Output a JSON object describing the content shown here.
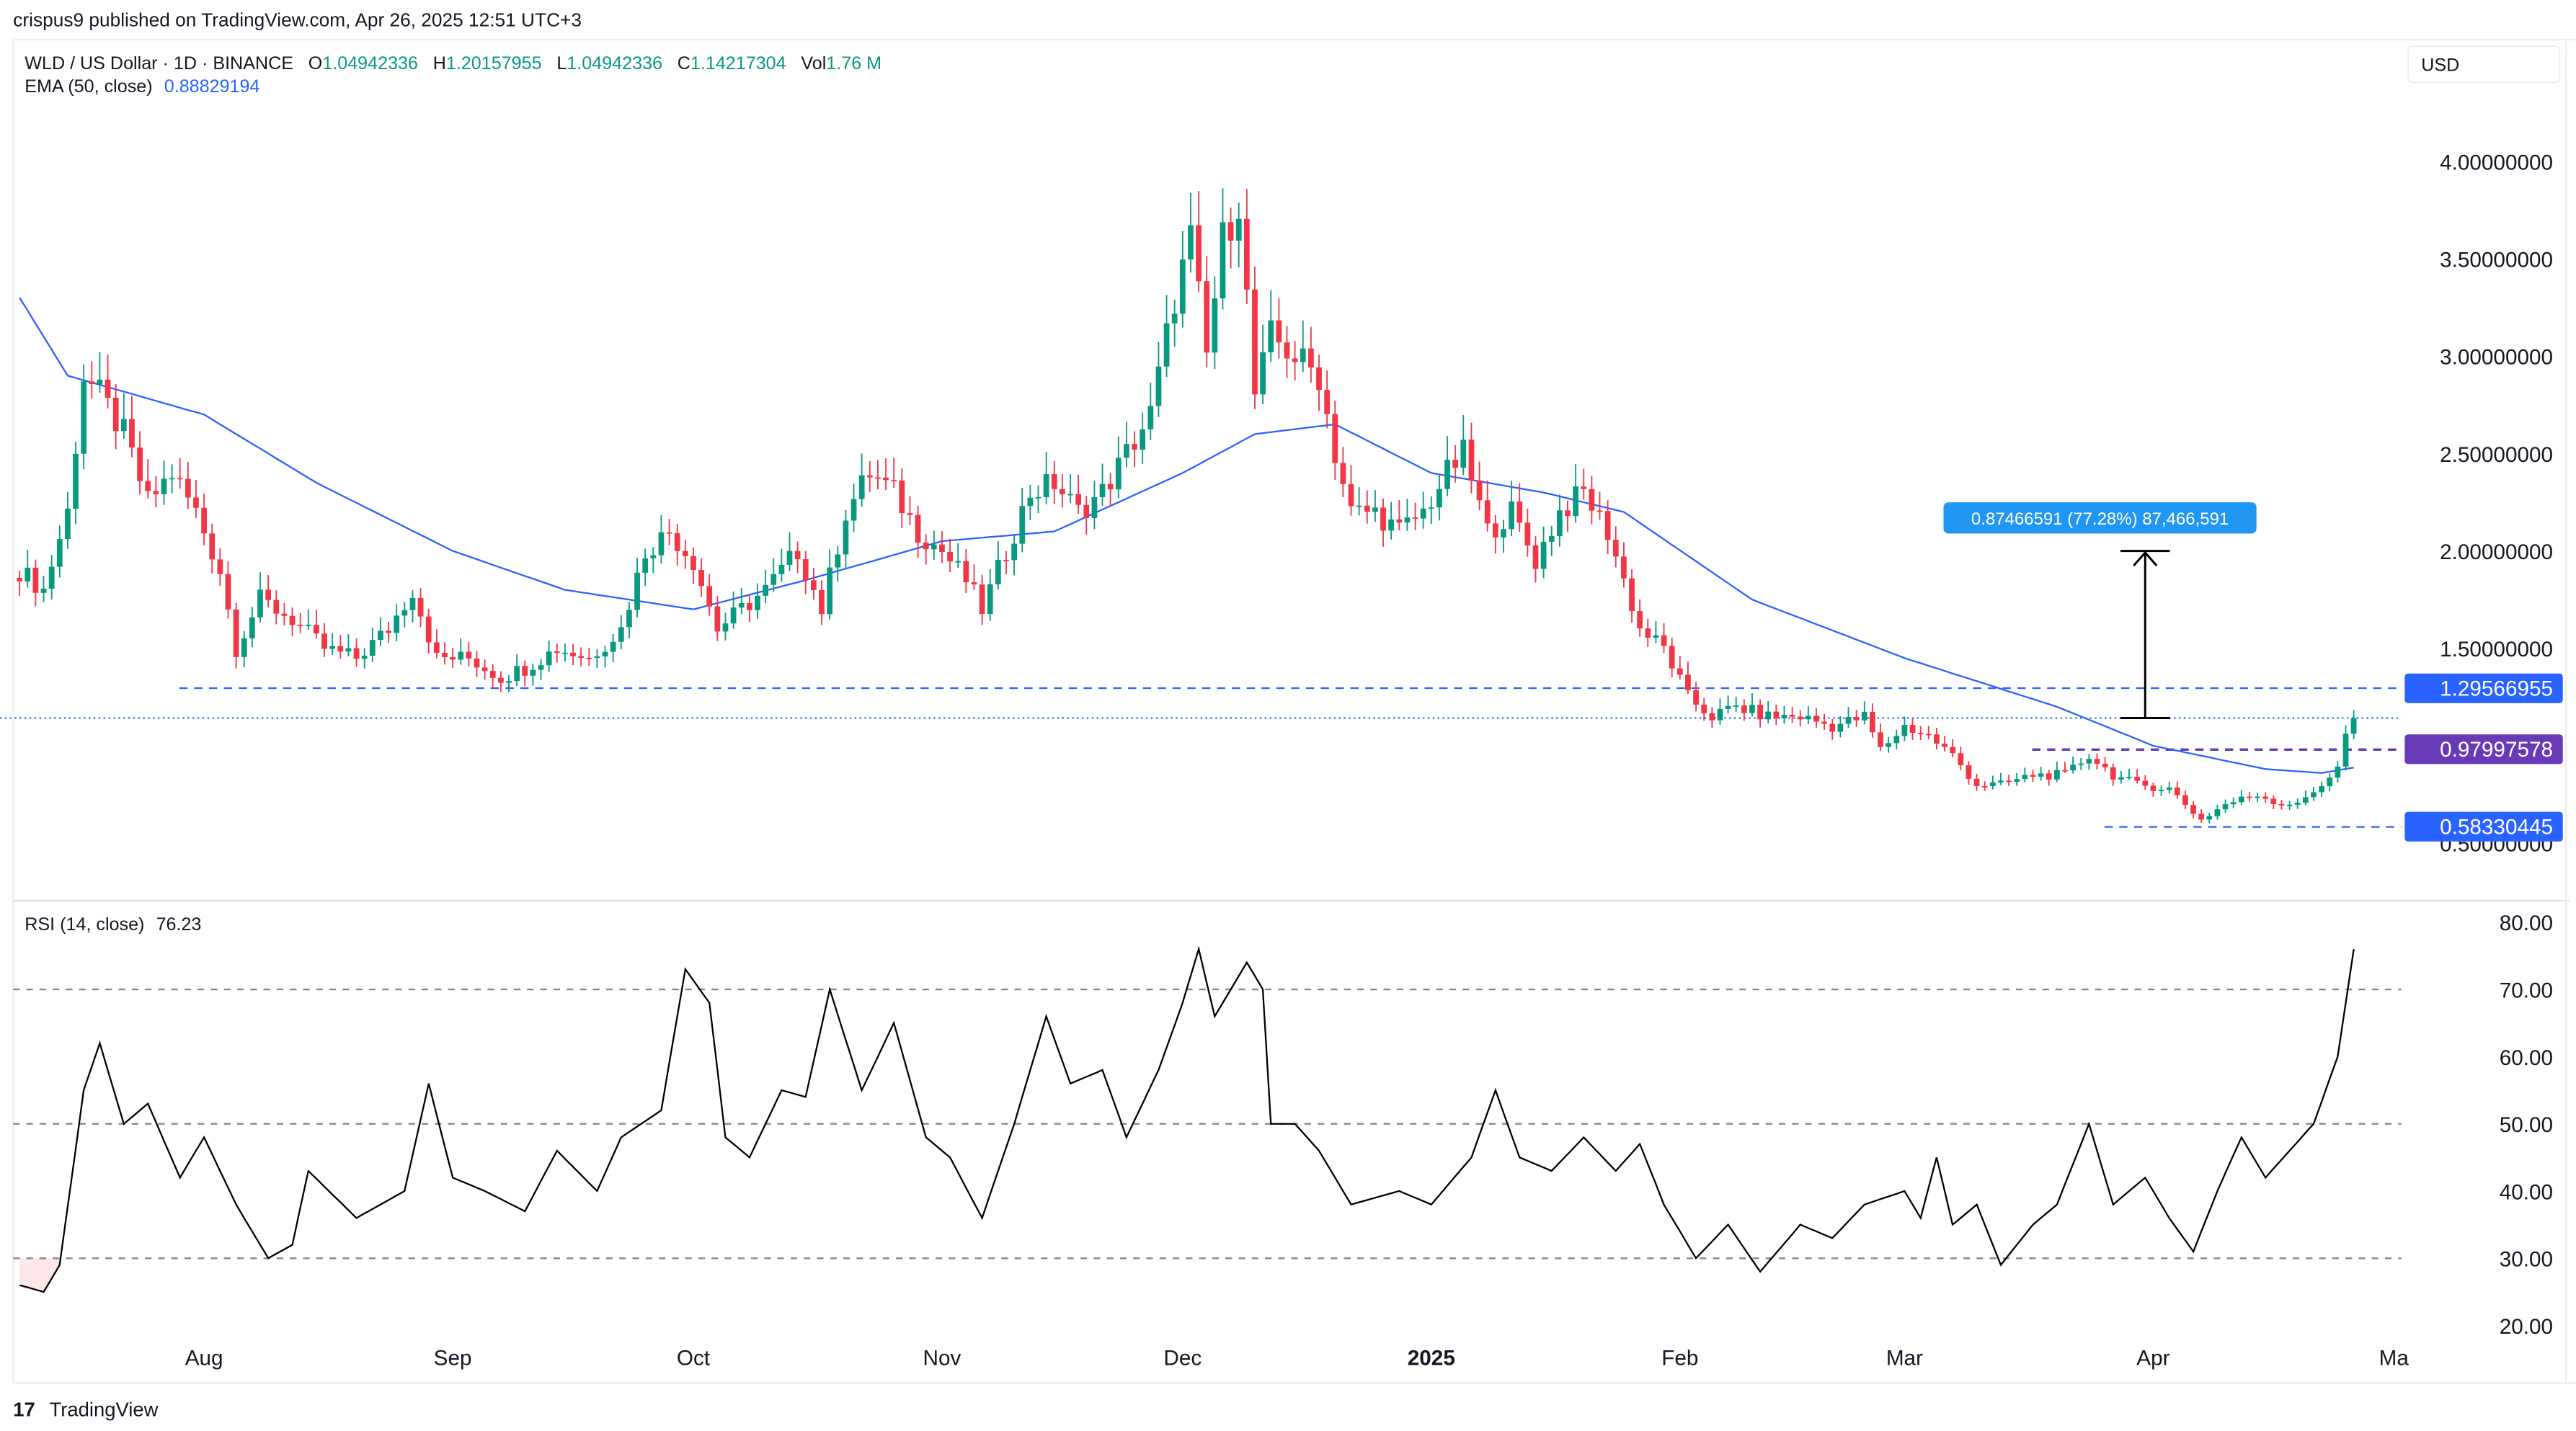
{
  "publisher_line": "crispus9 published on TradingView.com, Apr 26, 2025 12:51 UTC+3",
  "legend": {
    "symbol": "WLD / US Dollar · 1D · BINANCE",
    "o_label": "O",
    "o": "1.04942336",
    "h_label": "H",
    "h": "1.20157955",
    "l_label": "L",
    "l": "1.04942336",
    "c_label": "C",
    "c": "1.14217304",
    "vol_label": "Vol",
    "vol": "1.76 M",
    "ema_label": "EMA (50, close)",
    "ema": "0.88829194"
  },
  "currency_button": "USD",
  "price_labels": {
    "resistance": "1.29566955",
    "pivot": "0.97997578",
    "support": "0.58330445"
  },
  "measure_label": "0.87466591 (77.28%) 87,466,591",
  "rsi_label": "RSI (14, close)",
  "rsi_value": "76.23",
  "footer_logo": "TradingView",
  "colors": {
    "up": "#089981",
    "down": "#f23645",
    "ema": "#2962ff",
    "line_blue": "#2962ff",
    "purple": "#673ab7",
    "rsi": "#000000",
    "measure": "#2196f3"
  },
  "chart_data": [
    {
      "type": "candlestick",
      "title": "WLD / US Dollar · 1D · BINANCE",
      "y_ticks": [
        "4.00000000",
        "3.50000000",
        "3.00000000",
        "2.50000000",
        "2.00000000",
        "1.50000000",
        "0.50000000"
      ],
      "y_tick_values": [
        4.0,
        3.5,
        3.0,
        2.5,
        2.0,
        1.5,
        0.5
      ],
      "ylim": [
        0.45,
        4.3
      ],
      "x_ticks": [
        {
          "label": "Aug",
          "date": "2024-08-01"
        },
        {
          "label": "Sep",
          "date": "2024-09-01"
        },
        {
          "label": "Oct",
          "date": "2024-10-01"
        },
        {
          "label": "Nov",
          "date": "2024-11-01"
        },
        {
          "label": "Dec",
          "date": "2024-12-01"
        },
        {
          "label": "2025",
          "date": "2025-01-01"
        },
        {
          "label": "Feb",
          "date": "2025-02-01"
        },
        {
          "label": "Mar",
          "date": "2025-03-01"
        },
        {
          "label": "Apr",
          "date": "2025-04-01"
        },
        {
          "label": "Ma",
          "date": "2025-05-01"
        }
      ],
      "close_keypoints": [
        [
          "2024-07-09",
          1.9
        ],
        [
          "2024-07-12",
          1.8
        ],
        [
          "2024-07-15",
          2.2
        ],
        [
          "2024-07-17",
          2.9
        ],
        [
          "2024-07-19",
          2.8
        ],
        [
          "2024-07-22",
          2.6
        ],
        [
          "2024-07-25",
          2.25
        ],
        [
          "2024-07-28",
          2.4
        ],
        [
          "2024-07-31",
          2.2
        ],
        [
          "2024-08-03",
          1.9
        ],
        [
          "2024-08-05",
          1.5
        ],
        [
          "2024-08-08",
          1.75
        ],
        [
          "2024-08-12",
          1.65
        ],
        [
          "2024-08-16",
          1.5
        ],
        [
          "2024-08-20",
          1.45
        ],
        [
          "2024-08-24",
          1.6
        ],
        [
          "2024-08-27",
          1.8
        ],
        [
          "2024-08-30",
          1.45
        ],
        [
          "2024-09-03",
          1.45
        ],
        [
          "2024-09-07",
          1.35
        ],
        [
          "2024-09-10",
          1.4
        ],
        [
          "2024-09-14",
          1.5
        ],
        [
          "2024-09-18",
          1.45
        ],
        [
          "2024-09-22",
          1.6
        ],
        [
          "2024-09-25",
          2.0
        ],
        [
          "2024-09-28",
          2.1
        ],
        [
          "2024-10-01",
          1.95
        ],
        [
          "2024-10-04",
          1.6
        ],
        [
          "2024-10-07",
          1.7
        ],
        [
          "2024-10-10",
          1.8
        ],
        [
          "2024-10-14",
          2.0
        ],
        [
          "2024-10-17",
          1.7
        ],
        [
          "2024-10-20",
          2.2
        ],
        [
          "2024-10-23",
          2.4
        ],
        [
          "2024-10-26",
          2.3
        ],
        [
          "2024-10-29",
          2.1
        ],
        [
          "2024-11-01",
          2.0
        ],
        [
          "2024-11-04",
          1.85
        ],
        [
          "2024-11-06",
          1.7
        ],
        [
          "2024-11-09",
          2.0
        ],
        [
          "2024-11-12",
          2.3
        ],
        [
          "2024-11-15",
          2.35
        ],
        [
          "2024-11-18",
          2.2
        ],
        [
          "2024-11-21",
          2.3
        ],
        [
          "2024-11-24",
          2.5
        ],
        [
          "2024-11-27",
          2.7
        ],
        [
          "2024-11-30",
          3.3
        ],
        [
          "2024-12-02",
          3.6
        ],
        [
          "2024-12-04",
          3.0
        ],
        [
          "2024-12-06",
          3.6
        ],
        [
          "2024-12-08",
          3.8
        ],
        [
          "2024-12-10",
          2.8
        ],
        [
          "2024-12-12",
          3.1
        ],
        [
          "2024-12-15",
          3.0
        ],
        [
          "2024-12-18",
          2.9
        ],
        [
          "2024-12-20",
          2.5
        ],
        [
          "2024-12-22",
          2.2
        ],
        [
          "2024-12-25",
          2.2
        ],
        [
          "2024-12-28",
          2.1
        ],
        [
          "2024-12-31",
          2.2
        ],
        [
          "2025-01-03",
          2.4
        ],
        [
          "2025-01-05",
          2.5
        ],
        [
          "2025-01-08",
          2.1
        ],
        [
          "2025-01-11",
          2.2
        ],
        [
          "2025-01-14",
          1.95
        ],
        [
          "2025-01-17",
          2.2
        ],
        [
          "2025-01-20",
          2.3
        ],
        [
          "2025-01-23",
          2.1
        ],
        [
          "2025-01-25",
          1.85
        ],
        [
          "2025-01-27",
          1.6
        ],
        [
          "2025-01-30",
          1.5
        ],
        [
          "2025-02-02",
          1.25
        ],
        [
          "2025-02-05",
          1.15
        ],
        [
          "2025-02-08",
          1.2
        ],
        [
          "2025-02-12",
          1.15
        ],
        [
          "2025-02-16",
          1.15
        ],
        [
          "2025-02-20",
          1.1
        ],
        [
          "2025-02-24",
          1.15
        ],
        [
          "2025-02-26",
          0.98
        ],
        [
          "2025-03-01",
          1.1
        ],
        [
          "2025-03-04",
          1.05
        ],
        [
          "2025-03-07",
          0.95
        ],
        [
          "2025-03-10",
          0.8
        ],
        [
          "2025-03-13",
          0.8
        ],
        [
          "2025-03-17",
          0.85
        ],
        [
          "2025-03-21",
          0.85
        ],
        [
          "2025-03-24",
          0.95
        ],
        [
          "2025-03-27",
          0.85
        ],
        [
          "2025-03-30",
          0.8
        ],
        [
          "2025-04-03",
          0.78
        ],
        [
          "2025-04-07",
          0.62
        ],
        [
          "2025-04-10",
          0.7
        ],
        [
          "2025-04-14",
          0.75
        ],
        [
          "2025-04-17",
          0.7
        ],
        [
          "2025-04-20",
          0.72
        ],
        [
          "2025-04-22",
          0.8
        ],
        [
          "2025-04-24",
          0.9
        ],
        [
          "2025-04-25",
          1.05
        ],
        [
          "2025-04-26",
          1.142
        ]
      ],
      "ema_keypoints": [
        [
          "2024-07-09",
          3.3
        ],
        [
          "2024-07-15",
          2.9
        ],
        [
          "2024-08-01",
          2.7
        ],
        [
          "2024-08-15",
          2.35
        ],
        [
          "2024-09-01",
          2.0
        ],
        [
          "2024-09-15",
          1.8
        ],
        [
          "2024-10-01",
          1.7
        ],
        [
          "2024-10-15",
          1.85
        ],
        [
          "2024-11-01",
          2.05
        ],
        [
          "2024-11-15",
          2.1
        ],
        [
          "2024-12-01",
          2.4
        ],
        [
          "2024-12-10",
          2.6
        ],
        [
          "2024-12-20",
          2.65
        ],
        [
          "2025-01-01",
          2.4
        ],
        [
          "2025-01-15",
          2.3
        ],
        [
          "2025-01-25",
          2.2
        ],
        [
          "2025-02-10",
          1.75
        ],
        [
          "2025-03-01",
          1.45
        ],
        [
          "2025-03-20",
          1.2
        ],
        [
          "2025-04-01",
          1.0
        ],
        [
          "2025-04-15",
          0.88
        ],
        [
          "2025-04-22",
          0.86
        ],
        [
          "2025-04-26",
          0.888
        ]
      ],
      "horizontal_lines": [
        {
          "value": 1.29566955,
          "style": "dashed",
          "color": "#2962ff",
          "from": "2024-08-01"
        },
        {
          "value": 1.14217304,
          "style": "dotted",
          "color": "#2962ff",
          "from": "2024-07-09"
        },
        {
          "value": 0.97997578,
          "style": "dashed",
          "color": "#673ab7",
          "from": "2025-03-20"
        },
        {
          "value": 0.58330445,
          "style": "dashed",
          "color": "#2962ff",
          "from": "2025-03-29"
        }
      ],
      "measure": {
        "date": "2025-03-31",
        "from": 1.142,
        "to": 2.0
      }
    },
    {
      "type": "line",
      "title": "RSI (14, close)",
      "ylim": [
        20,
        80
      ],
      "y_ticks": [
        "80.00",
        "70.00",
        "60.00",
        "50.00",
        "40.00",
        "30.00",
        "20.00"
      ],
      "y_tick_values": [
        80,
        70,
        60,
        50,
        40,
        30,
        20
      ],
      "bands": [
        70,
        50,
        30
      ],
      "keypoints": [
        [
          "2024-07-09",
          26
        ],
        [
          "2024-07-12",
          25
        ],
        [
          "2024-07-14",
          29
        ],
        [
          "2024-07-17",
          55
        ],
        [
          "2024-07-19",
          62
        ],
        [
          "2024-07-22",
          50
        ],
        [
          "2024-07-25",
          53
        ],
        [
          "2024-07-29",
          42
        ],
        [
          "2024-08-01",
          48
        ],
        [
          "2024-08-05",
          38
        ],
        [
          "2024-08-09",
          30
        ],
        [
          "2024-08-12",
          32
        ],
        [
          "2024-08-14",
          43
        ],
        [
          "2024-08-20",
          36
        ],
        [
          "2024-08-26",
          40
        ],
        [
          "2024-08-29",
          56
        ],
        [
          "2024-09-01",
          42
        ],
        [
          "2024-09-05",
          40
        ],
        [
          "2024-09-10",
          37
        ],
        [
          "2024-09-14",
          46
        ],
        [
          "2024-09-19",
          40
        ],
        [
          "2024-09-22",
          48
        ],
        [
          "2024-09-27",
          52
        ],
        [
          "2024-09-30",
          73
        ],
        [
          "2024-10-03",
          68
        ],
        [
          "2024-10-05",
          48
        ],
        [
          "2024-10-08",
          45
        ],
        [
          "2024-10-12",
          55
        ],
        [
          "2024-10-15",
          54
        ],
        [
          "2024-10-18",
          70
        ],
        [
          "2024-10-22",
          55
        ],
        [
          "2024-10-26",
          65
        ],
        [
          "2024-10-30",
          48
        ],
        [
          "2024-11-02",
          45
        ],
        [
          "2024-11-06",
          36
        ],
        [
          "2024-11-10",
          50
        ],
        [
          "2024-11-14",
          66
        ],
        [
          "2024-11-17",
          56
        ],
        [
          "2024-11-21",
          58
        ],
        [
          "2024-11-24",
          48
        ],
        [
          "2024-11-28",
          58
        ],
        [
          "2024-12-01",
          68
        ],
        [
          "2024-12-03",
          76
        ],
        [
          "2024-12-05",
          66
        ],
        [
          "2024-12-09",
          74
        ],
        [
          "2024-12-11",
          70
        ],
        [
          "2024-12-12",
          50
        ],
        [
          "2024-12-15",
          50
        ],
        [
          "2024-12-18",
          46
        ],
        [
          "2024-12-22",
          38
        ],
        [
          "2024-12-28",
          40
        ],
        [
          "2025-01-01",
          38
        ],
        [
          "2025-01-06",
          45
        ],
        [
          "2025-01-09",
          55
        ],
        [
          "2025-01-12",
          45
        ],
        [
          "2025-01-16",
          43
        ],
        [
          "2025-01-20",
          48
        ],
        [
          "2025-01-24",
          43
        ],
        [
          "2025-01-27",
          47
        ],
        [
          "2025-01-30",
          38
        ],
        [
          "2025-02-03",
          30
        ],
        [
          "2025-02-07",
          35
        ],
        [
          "2025-02-11",
          28
        ],
        [
          "2025-02-16",
          35
        ],
        [
          "2025-02-20",
          33
        ],
        [
          "2025-02-24",
          38
        ],
        [
          "2025-03-01",
          40
        ],
        [
          "2025-03-03",
          36
        ],
        [
          "2025-03-05",
          45
        ],
        [
          "2025-03-07",
          35
        ],
        [
          "2025-03-10",
          38
        ],
        [
          "2025-03-13",
          29
        ],
        [
          "2025-03-17",
          35
        ],
        [
          "2025-03-20",
          38
        ],
        [
          "2025-03-24",
          50
        ],
        [
          "2025-03-27",
          38
        ],
        [
          "2025-03-31",
          42
        ],
        [
          "2025-04-03",
          36
        ],
        [
          "2025-04-06",
          31
        ],
        [
          "2025-04-09",
          40
        ],
        [
          "2025-04-12",
          48
        ],
        [
          "2025-04-15",
          42
        ],
        [
          "2025-04-18",
          46
        ],
        [
          "2025-04-21",
          50
        ],
        [
          "2025-04-24",
          60
        ],
        [
          "2025-04-26",
          76
        ]
      ]
    }
  ]
}
